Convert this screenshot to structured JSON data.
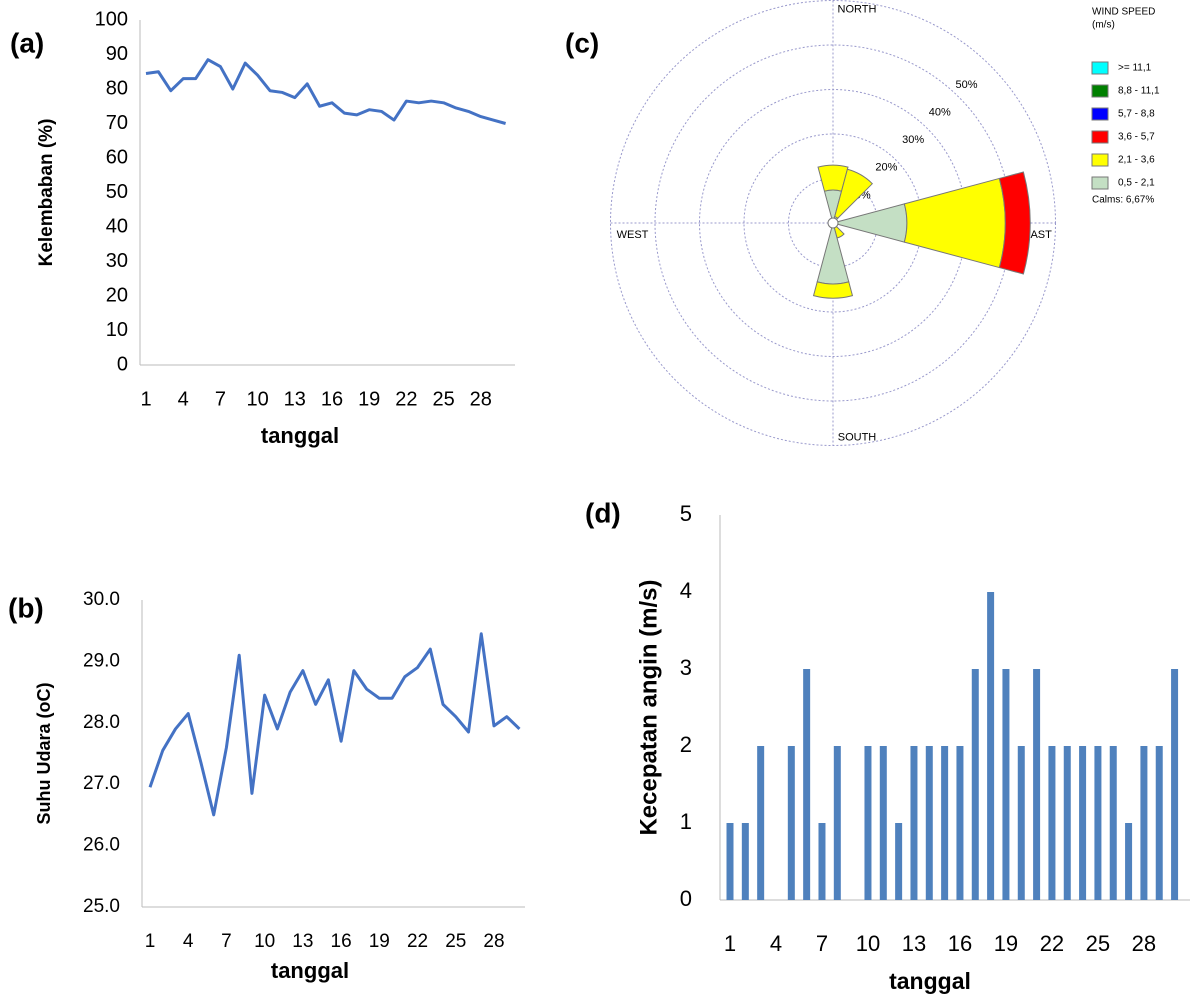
{
  "chart_data": [
    {
      "type": "line",
      "title": "(a)",
      "y_label": "Kelembaban (%)",
      "x_label": "tanggal",
      "color": "#4472c4",
      "categories": [
        "1",
        null,
        null,
        "4",
        null,
        null,
        "7",
        null,
        null,
        "10",
        null,
        null,
        "13",
        null,
        null,
        "16",
        null,
        null,
        "19",
        null,
        null,
        "22",
        null,
        null,
        "25",
        null,
        null,
        "28",
        null,
        null
      ],
      "values": [
        84.5,
        85,
        79.5,
        83,
        83,
        88.5,
        86.5,
        80,
        87.5,
        84,
        79.5,
        79,
        77.5,
        81.5,
        75,
        76,
        73,
        72.5,
        74,
        73.5,
        71,
        76.5,
        76,
        76.5,
        76,
        74.5,
        73.5,
        72,
        71,
        70
      ],
      "ylim": [
        0,
        100
      ],
      "yticks": [
        0,
        10,
        20,
        30,
        40,
        50,
        60,
        70,
        80,
        90,
        100
      ]
    },
    {
      "type": "line",
      "title": "(b)",
      "y_label": "Suhu Udara (oC)",
      "x_label": "tanggal",
      "color": "#4472c4",
      "categories": [
        "1",
        null,
        null,
        "4",
        null,
        null,
        "7",
        null,
        null,
        "10",
        null,
        null,
        "13",
        null,
        null,
        "16",
        null,
        null,
        "19",
        null,
        null,
        "22",
        null,
        null,
        "25",
        null,
        null,
        "28",
        null,
        null
      ],
      "values": [
        26.95,
        27.55,
        27.9,
        28.15,
        27.35,
        26.5,
        27.6,
        29.1,
        26.85,
        28.45,
        27.9,
        28.5,
        28.85,
        28.3,
        28.7,
        27.7,
        28.85,
        28.55,
        28.4,
        28.4,
        28.75,
        28.9,
        29.2,
        28.3,
        28.1,
        27.85,
        29.45,
        27.95,
        28.1,
        27.9
      ],
      "ylim": [
        25,
        30
      ],
      "yticks": [
        {
          "value": 25,
          "label": "25.0"
        },
        {
          "value": 26,
          "label": "26.0"
        },
        {
          "value": 27,
          "label": "27.0"
        },
        {
          "value": 28,
          "label": "28.0"
        },
        {
          "value": 29,
          "label": "29.0"
        },
        {
          "value": 30,
          "label": "30.0"
        }
      ]
    },
    {
      "type": "rose",
      "title": "(c)",
      "legend_title": "WIND SPEED",
      "legend_unit": "(m/s)",
      "calms_label": "Calms: 6,67%",
      "compass": [
        "NORTH",
        "EAST",
        "SOUTH",
        "WEST"
      ],
      "directions": [
        0,
        30,
        60,
        90,
        120,
        150,
        180,
        210,
        240,
        270,
        300,
        330
      ],
      "rlim": [
        0,
        50
      ],
      "rticks": [
        {
          "value": 10,
          "label": "10%"
        },
        {
          "value": 20,
          "label": "20%"
        },
        {
          "value": 30,
          "label": "30%"
        },
        {
          "value": 40,
          "label": "40%"
        },
        {
          "value": 50,
          "label": "50%"
        }
      ],
      "series": [
        {
          "name": ">= 11,1",
          "color": "#00ffff",
          "values": [
            0,
            0,
            0,
            0,
            0,
            0,
            0,
            0,
            0,
            0,
            0,
            0
          ]
        },
        {
          "name": "8,8 - 11,1",
          "color": "#008000",
          "values": [
            0,
            0,
            0,
            0,
            0,
            0,
            0,
            0,
            0,
            0,
            0,
            0
          ]
        },
        {
          "name": "5,7 - 8,8",
          "color": "#0000ff",
          "values": [
            0,
            0,
            0,
            0,
            0,
            0,
            0,
            0,
            0,
            0,
            0,
            0
          ]
        },
        {
          "name": "3,6 - 5,7",
          "color": "#ff0000",
          "values": [
            0,
            0,
            0,
            5.6,
            0,
            0,
            0,
            0,
            0,
            0,
            0,
            0
          ]
        },
        {
          "name": "2,1 - 3,6",
          "color": "#ffff00",
          "values": [
            5.6,
            11,
            0,
            22.1,
            0,
            2.5,
            3.2,
            0,
            0,
            0,
            0,
            0
          ]
        },
        {
          "name": "0,5 - 2,1",
          "color": "#c4dfc4",
          "values": [
            7.4,
            1.5,
            0,
            16.6,
            0,
            1,
            13.7,
            0,
            0,
            0,
            0,
            0
          ]
        }
      ]
    },
    {
      "type": "bar",
      "title": "(d)",
      "y_label": "Kecepatan angin (m/s)",
      "x_label": "tanggal",
      "color": "#4f81bd",
      "categories": [
        "1",
        null,
        null,
        "4",
        null,
        null,
        "7",
        null,
        null,
        "10",
        null,
        null,
        "13",
        null,
        null,
        "16",
        null,
        null,
        "19",
        null,
        null,
        "22",
        null,
        null,
        "25",
        null,
        null,
        "28",
        null,
        null
      ],
      "values": [
        1,
        1,
        2,
        0,
        2,
        3,
        1,
        2,
        0,
        2,
        2,
        1,
        2,
        2,
        2,
        2,
        3,
        4,
        3,
        2,
        3,
        2,
        2,
        2,
        2,
        2,
        1,
        2,
        2,
        3
      ],
      "ylim": [
        0,
        5
      ],
      "yticks": [
        0,
        1,
        2,
        3,
        4,
        5
      ]
    }
  ]
}
